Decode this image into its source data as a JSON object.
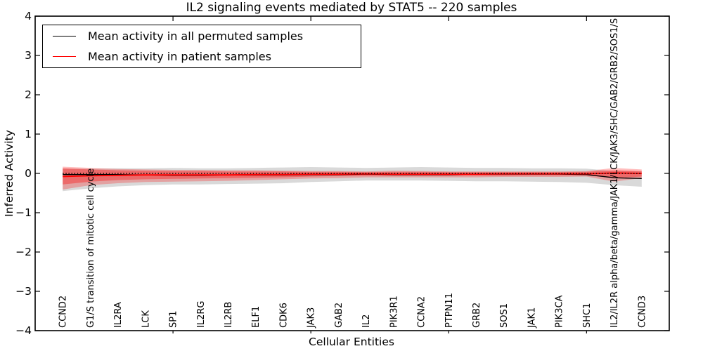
{
  "title": "IL2 signaling events mediated by STAT5 -- 220 samples",
  "legend": {
    "items": [
      {
        "label": "Mean activity in all permuted samples",
        "color": "#000000"
      },
      {
        "label": "Mean activity in patient samples",
        "color": "#ff0000"
      }
    ]
  },
  "axes": {
    "xlabel": "Cellular Entities",
    "ylabel": "Inferred Activity"
  },
  "chart_data": {
    "type": "line",
    "title": "IL2 signaling events mediated by STAT5 -- 220 samples",
    "xlabel": "Cellular Entities",
    "ylabel": "Inferred Activity",
    "ylim": [
      -4,
      4
    ],
    "yticks": [
      4,
      3,
      2,
      1,
      0,
      -1,
      -2,
      -3,
      -4
    ],
    "xlim": [
      0,
      23
    ],
    "xticks_major": [
      5,
      10,
      15,
      20
    ],
    "grid": false,
    "legend_position": "upper left",
    "zero_line": 0,
    "categories": [
      "CCND2",
      "G1/S transition of mitotic cell cycle",
      "IL2RA",
      "LCK",
      "SP1",
      "IL2RG",
      "IL2RB",
      "ELF1",
      "CDK6",
      "JAK3",
      "GAB2",
      "IL2",
      "PIK3R1",
      "CCNA2",
      "PTPN11",
      "GRB2",
      "SOS1",
      "JAK1",
      "PIK3CA",
      "SHC1",
      "IL2/IL2R alpha/beta/gamma/JAK1/LCK/JAK3/SHC/GAB2/GRB2/SOS1/S",
      "CCND3"
    ],
    "series": [
      {
        "name": "Mean activity in all permuted samples",
        "color": "#000000",
        "values": [
          -0.03,
          -0.03,
          -0.03,
          -0.04,
          -0.05,
          -0.05,
          -0.04,
          -0.04,
          -0.04,
          -0.03,
          -0.03,
          -0.02,
          -0.03,
          -0.03,
          -0.03,
          -0.02,
          -0.02,
          -0.02,
          -0.02,
          -0.03,
          -0.11,
          -0.13
        ]
      },
      {
        "name": "Mean activity in patient samples",
        "color": "#ff0000",
        "values": [
          -0.08,
          -0.06,
          -0.05,
          -0.04,
          -0.04,
          -0.04,
          -0.04,
          -0.03,
          -0.03,
          -0.02,
          -0.02,
          -0.01,
          -0.02,
          -0.02,
          -0.02,
          -0.02,
          -0.01,
          -0.01,
          -0.01,
          -0.01,
          0.01,
          0.0
        ]
      }
    ],
    "bands": [
      {
        "name": "permuted-range",
        "color": "#808080",
        "opacity": 0.3,
        "upper": [
          0.12,
          0.12,
          0.13,
          0.13,
          0.14,
          0.13,
          0.13,
          0.14,
          0.15,
          0.16,
          0.15,
          0.14,
          0.15,
          0.16,
          0.15,
          0.14,
          0.14,
          0.13,
          0.13,
          0.12,
          0.06,
          0.05
        ],
        "lower": [
          -0.45,
          -0.38,
          -0.33,
          -0.3,
          -0.28,
          -0.28,
          -0.27,
          -0.26,
          -0.25,
          -0.22,
          -0.2,
          -0.18,
          -0.18,
          -0.18,
          -0.19,
          -0.2,
          -0.2,
          -0.21,
          -0.22,
          -0.24,
          -0.3,
          -0.34
        ]
      },
      {
        "name": "patient-outer",
        "color": "#ff0000",
        "opacity": 0.26,
        "upper": [
          0.17,
          0.14,
          0.11,
          0.1,
          0.09,
          0.09,
          0.08,
          0.08,
          0.07,
          0.06,
          0.06,
          0.05,
          0.07,
          0.06,
          0.05,
          0.05,
          0.05,
          0.05,
          0.05,
          0.06,
          0.14,
          0.1
        ],
        "lower": [
          -0.41,
          -0.3,
          -0.25,
          -0.22,
          -0.21,
          -0.2,
          -0.19,
          -0.17,
          -0.15,
          -0.13,
          -0.12,
          -0.1,
          -0.1,
          -0.1,
          -0.1,
          -0.1,
          -0.09,
          -0.09,
          -0.09,
          -0.08,
          -0.21,
          -0.12
        ]
      },
      {
        "name": "patient-inner",
        "color": "#ff0000",
        "opacity": 0.34,
        "upper": [
          0.13,
          0.1,
          0.08,
          0.07,
          0.06,
          0.06,
          0.05,
          0.05,
          0.05,
          0.04,
          0.04,
          0.03,
          0.04,
          0.04,
          0.03,
          0.03,
          0.03,
          0.03,
          0.03,
          0.04,
          0.08,
          0.06
        ],
        "lower": [
          -0.28,
          -0.21,
          -0.17,
          -0.15,
          -0.14,
          -0.13,
          -0.12,
          -0.11,
          -0.1,
          -0.08,
          -0.07,
          -0.06,
          -0.06,
          -0.06,
          -0.06,
          -0.06,
          -0.06,
          -0.05,
          -0.05,
          -0.05,
          -0.12,
          -0.08
        ]
      }
    ]
  }
}
